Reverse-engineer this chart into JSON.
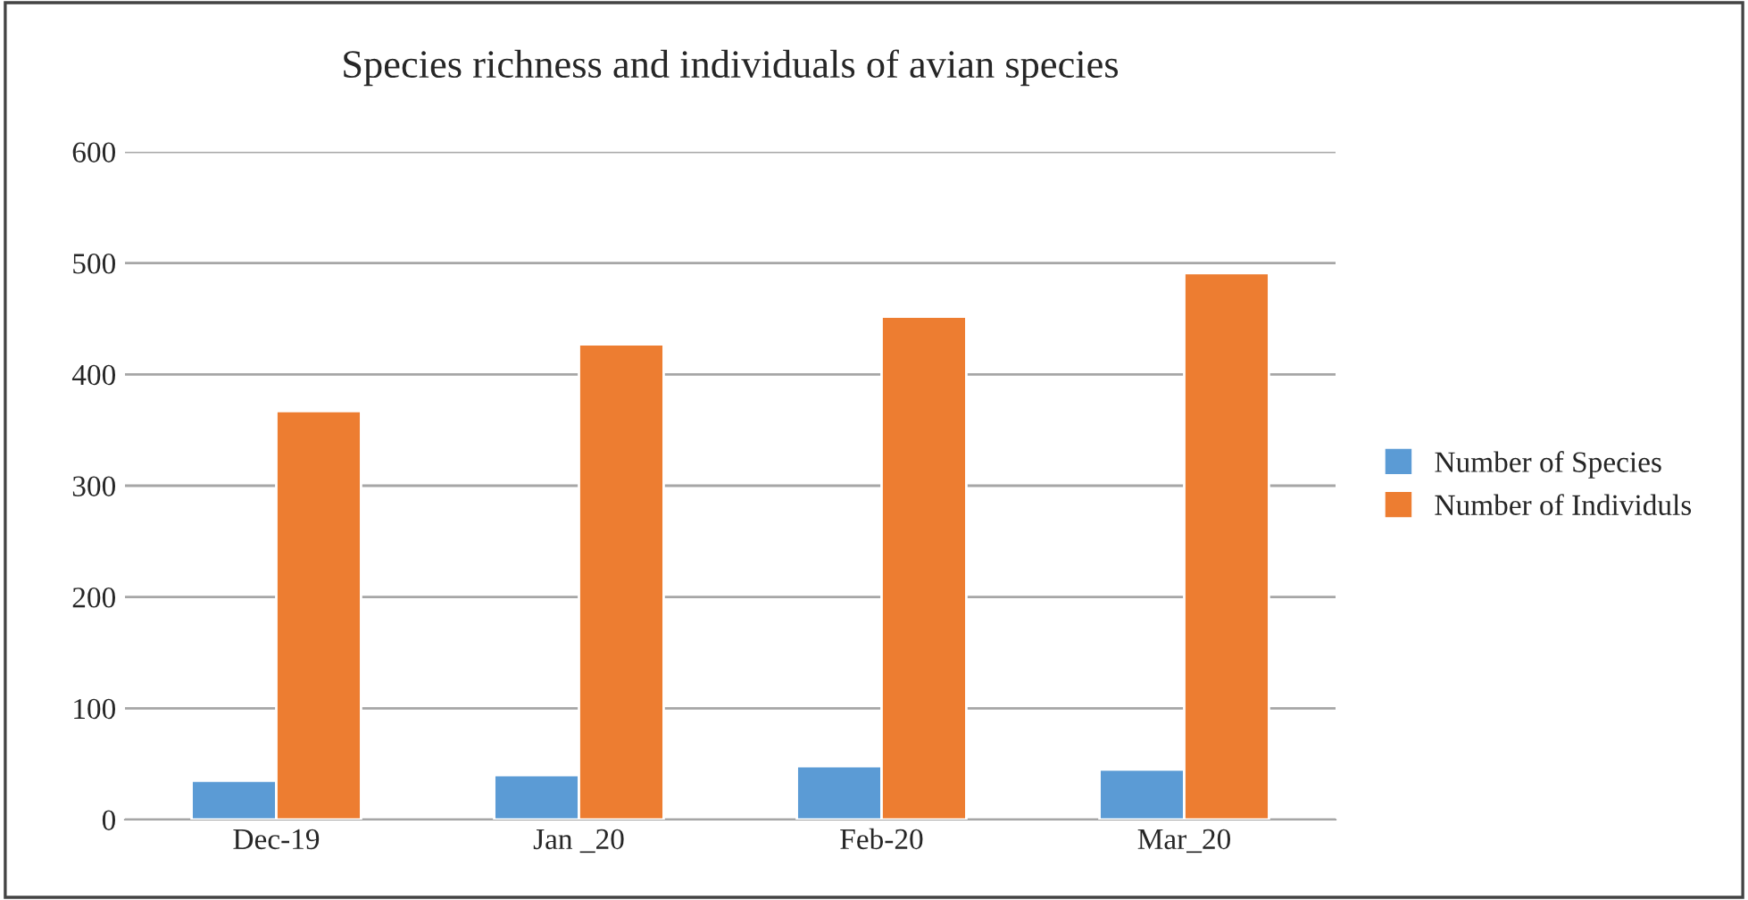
{
  "chart_data": {
    "type": "bar",
    "title": "Species richness and individuals of avian species",
    "categories": [
      "Dec-19",
      "Jan _20",
      "Feb-20",
      "Mar_20"
    ],
    "series": [
      {
        "name": "Number of Species",
        "color": "#5b9bd5",
        "values": [
          35,
          40,
          48,
          45
        ]
      },
      {
        "name": "Number of Individuls",
        "color": "#ed7d31",
        "values": [
          367,
          427,
          452,
          491
        ]
      }
    ],
    "ylim": [
      0,
      600
    ],
    "yticks": [
      0,
      100,
      200,
      300,
      400,
      500,
      600
    ],
    "grid": "y",
    "legend": "right"
  }
}
